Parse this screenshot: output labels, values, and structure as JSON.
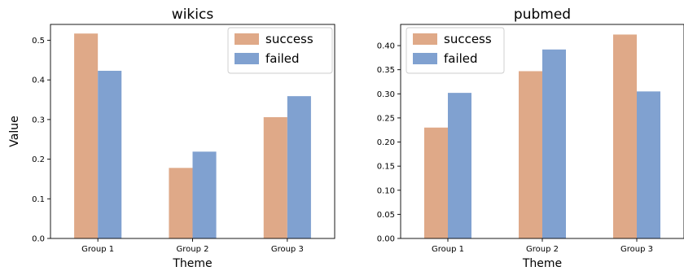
{
  "chart_data": [
    {
      "type": "bar",
      "title": "wikics",
      "xlabel": "Theme",
      "ylabel": "Value",
      "categories": [
        "Group 1",
        "Group 2",
        "Group 3"
      ],
      "series": [
        {
          "name": "success",
          "values": [
            0.517,
            0.178,
            0.306
          ],
          "color": "#DFA988"
        },
        {
          "name": "failed",
          "values": [
            0.423,
            0.219,
            0.359
          ],
          "color": "#80A1D0"
        }
      ],
      "ylim": [
        0,
        0.54
      ],
      "yticks": [
        "0.0",
        "0.1",
        "0.2",
        "0.3",
        "0.4",
        "0.5"
      ],
      "ytick_values": [
        0,
        0.1,
        0.2,
        0.3,
        0.4,
        0.5
      ],
      "legend_position": "top-right",
      "grid": false
    },
    {
      "type": "bar",
      "title": "pubmed",
      "xlabel": "Theme",
      "ylabel": "",
      "categories": [
        "Group 1",
        "Group 2",
        "Group 3"
      ],
      "series": [
        {
          "name": "success",
          "values": [
            0.23,
            0.347,
            0.423
          ],
          "color": "#DFA988"
        },
        {
          "name": "failed",
          "values": [
            0.302,
            0.392,
            0.305
          ],
          "color": "#80A1D0"
        }
      ],
      "ylim": [
        0,
        0.444
      ],
      "yticks": [
        "0.00",
        "0.05",
        "0.10",
        "0.15",
        "0.20",
        "0.25",
        "0.30",
        "0.35",
        "0.40"
      ],
      "ytick_values": [
        0,
        0.05,
        0.1,
        0.15,
        0.2,
        0.25,
        0.3,
        0.35,
        0.4
      ],
      "legend_position": "top-left",
      "grid": false
    }
  ]
}
